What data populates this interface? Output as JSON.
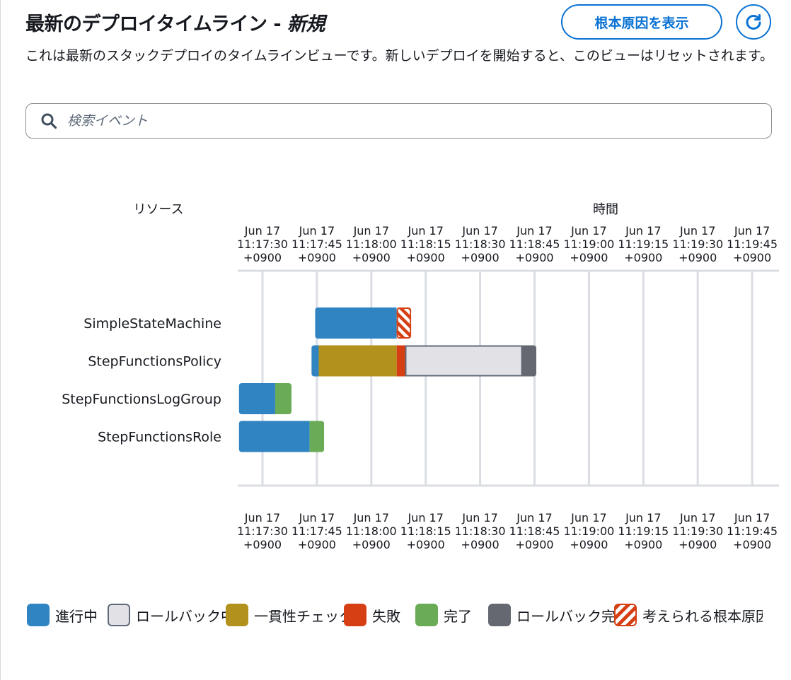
{
  "header": {
    "title_main": "最新のデプロイタイムライン",
    "title_sep": " - ",
    "title_status": "新規",
    "root_cause_label": "根本原因を表示"
  },
  "description": "これは最新のスタックデプロイのタイムラインビューです。新しいデプロイを開始すると、このビューはリセットされます。",
  "search": {
    "placeholder": "検索イベント",
    "value": ""
  },
  "chart_data": {
    "type": "gantt",
    "resource_header": "リソース",
    "time_header": "時間",
    "ticks": [
      {
        "date": "Jun 17",
        "time": "11:17:30",
        "tz": "+0900"
      },
      {
        "date": "Jun 17",
        "time": "11:17:45",
        "tz": "+0900"
      },
      {
        "date": "Jun 17",
        "time": "11:18:00",
        "tz": "+0900"
      },
      {
        "date": "Jun 17",
        "time": "11:18:15",
        "tz": "+0900"
      },
      {
        "date": "Jun 17",
        "time": "11:18:30",
        "tz": "+0900"
      },
      {
        "date": "Jun 17",
        "time": "11:18:45",
        "tz": "+0900"
      },
      {
        "date": "Jun 17",
        "time": "11:19:00",
        "tz": "+0900"
      },
      {
        "date": "Jun 17",
        "time": "11:19:15",
        "tz": "+0900"
      },
      {
        "date": "Jun 17",
        "time": "11:19:30",
        "tz": "+0900"
      },
      {
        "date": "Jun 17",
        "time": "11:19:45",
        "tz": "+0900"
      }
    ],
    "resources": [
      {
        "name": "SimpleStateMachine",
        "segments": [
          {
            "status": "in_progress",
            "start": "11:17:44.5",
            "end": "11:18:07"
          },
          {
            "status": "root_cause",
            "start": "11:18:07",
            "end": "11:18:11"
          }
        ]
      },
      {
        "name": "StepFunctionsPolicy",
        "segments": [
          {
            "status": "in_progress",
            "start": "11:17:43.5",
            "end": "11:17:45.5"
          },
          {
            "status": "consistency_check",
            "start": "11:17:45.5",
            "end": "11:18:07"
          },
          {
            "status": "failed",
            "start": "11:18:07",
            "end": "11:18:09.5"
          },
          {
            "status": "rollback_in_progress",
            "start": "11:18:09.5",
            "end": "11:18:41.5"
          },
          {
            "status": "rollback_complete",
            "start": "11:18:41.5",
            "end": "11:18:45.5"
          }
        ]
      },
      {
        "name": "StepFunctionsLogGroup",
        "segments": [
          {
            "status": "in_progress",
            "start": "11:17:23.5",
            "end": "11:17:33.5"
          },
          {
            "status": "complete",
            "start": "11:17:33.5",
            "end": "11:17:38"
          }
        ]
      },
      {
        "name": "StepFunctionsRole",
        "segments": [
          {
            "status": "in_progress",
            "start": "11:17:23.5",
            "end": "11:17:43"
          },
          {
            "status": "complete",
            "start": "11:17:43",
            "end": "11:17:47"
          }
        ]
      }
    ],
    "grid": true
  },
  "legend": [
    {
      "status": "in_progress",
      "label": "進行中",
      "color": "#3184c2"
    },
    {
      "status": "rollback_in_progress",
      "label": "ロールバック中",
      "color": "#e2e2e6",
      "border": "#5f6b7a"
    },
    {
      "status": "consistency_check",
      "label": "一貫性チェック",
      "color": "#b2911c"
    },
    {
      "status": "failed",
      "label": "失敗",
      "color": "#d63f14"
    },
    {
      "status": "complete",
      "label": "完了",
      "color": "#69ac55"
    },
    {
      "status": "rollback_complete",
      "label": "ロールバック完了",
      "color": "#656871"
    },
    {
      "status": "root_cause",
      "label": "考えられる根本原因",
      "color": "#d63f14",
      "pattern": "stripes"
    }
  ],
  "icons": {
    "search": "search-icon",
    "refresh": "refresh-icon"
  }
}
